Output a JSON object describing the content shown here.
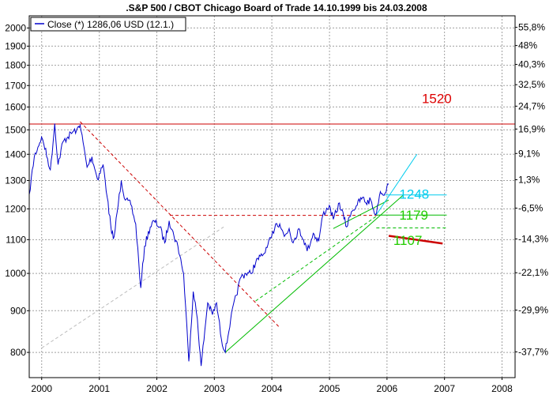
{
  "chart_data": {
    "type": "line",
    "title": ".S&P 500 / CBOT Chicago Board of Trade 14.10.1999 bis 24.03.2008",
    "legend": {
      "label": "Close (*) 1286,06 USD (12.1.)",
      "placement": "top-left",
      "color": "#0000cc"
    },
    "x_range": [
      "1999-10-14",
      "2008-03-24"
    ],
    "x_ticks": [
      "2000",
      "2001",
      "2002",
      "2003",
      "2004",
      "2005",
      "2006",
      "2007",
      "2008"
    ],
    "y_range": [
      745,
      2070
    ],
    "y_scale": "log",
    "y_ticks_left": [
      2000,
      1900,
      1800,
      1700,
      1600,
      1500,
      1400,
      1300,
      1200,
      1100,
      1000,
      900,
      800
    ],
    "y_ticks_right": [
      {
        "label": "55,8%",
        "pct": 55.8
      },
      {
        "label": "48%",
        "pct": 48.0
      },
      {
        "label": "40,3%",
        "pct": 40.3
      },
      {
        "label": "32,5%",
        "pct": 32.5
      },
      {
        "label": "24,7%",
        "pct": 24.7
      },
      {
        "label": "16,9%",
        "pct": 16.9
      },
      {
        "label": "9,1%",
        "pct": 9.1
      },
      {
        "label": "1,3%",
        "pct": 1.3
      },
      {
        "label": "-6,5%",
        "pct": -6.5
      },
      {
        "label": "-14,3%",
        "pct": -14.3
      },
      {
        "label": "-22,1%",
        "pct": -22.1
      },
      {
        "label": "-29,9%",
        "pct": -29.9
      },
      {
        "label": "-37,7%",
        "pct": -37.7
      }
    ],
    "grid": true,
    "colors": {
      "series": "#0000cc",
      "red": "#cc0000",
      "green": "#00bb00",
      "cyan": "#00ccee",
      "annotation_red": "#dd0000",
      "annotation_green": "#22cc00",
      "annotation_cyan": "#00ccee"
    },
    "series": [
      {
        "name": "Close (*) 1286,06 USD (12.1.)",
        "points": [
          [
            "1999-10-14",
            1250
          ],
          [
            "1999-11-15",
            1390
          ],
          [
            "1999-12-31",
            1470
          ],
          [
            "2000-01-15",
            1440
          ],
          [
            "2000-02-25",
            1340
          ],
          [
            "2000-03-24",
            1527
          ],
          [
            "2000-04-14",
            1360
          ],
          [
            "2000-05-15",
            1450
          ],
          [
            "2000-06-15",
            1470
          ],
          [
            "2000-07-15",
            1490
          ],
          [
            "2000-08-10",
            1500
          ],
          [
            "2000-09-01",
            1520
          ],
          [
            "2000-10-15",
            1350
          ],
          [
            "2000-11-15",
            1390
          ],
          [
            "2000-12-20",
            1305
          ],
          [
            "2001-01-25",
            1360
          ],
          [
            "2001-02-20",
            1240
          ],
          [
            "2001-03-20",
            1120
          ],
          [
            "2001-04-05",
            1110
          ],
          [
            "2001-05-20",
            1300
          ],
          [
            "2001-06-15",
            1230
          ],
          [
            "2001-07-20",
            1215
          ],
          [
            "2001-08-20",
            1150
          ],
          [
            "2001-09-21",
            960
          ],
          [
            "2001-10-15",
            1080
          ],
          [
            "2001-11-20",
            1140
          ],
          [
            "2001-12-15",
            1160
          ],
          [
            "2002-01-20",
            1140
          ],
          [
            "2002-02-20",
            1090
          ],
          [
            "2002-03-20",
            1160
          ],
          [
            "2002-04-20",
            1110
          ],
          [
            "2002-05-15",
            1080
          ],
          [
            "2002-06-20",
            1000
          ],
          [
            "2002-07-23",
            780
          ],
          [
            "2002-08-20",
            950
          ],
          [
            "2002-09-15",
            880
          ],
          [
            "2002-10-09",
            770
          ],
          [
            "2002-11-20",
            920
          ],
          [
            "2002-12-20",
            890
          ],
          [
            "2003-01-15",
            920
          ],
          [
            "2003-02-15",
            830
          ],
          [
            "2003-03-11",
            800
          ],
          [
            "2003-04-15",
            880
          ],
          [
            "2003-05-20",
            940
          ],
          [
            "2003-06-20",
            990
          ],
          [
            "2003-07-20",
            1000
          ],
          [
            "2003-08-20",
            1000
          ],
          [
            "2003-09-20",
            1030
          ],
          [
            "2003-10-20",
            1050
          ],
          [
            "2003-11-20",
            1060
          ],
          [
            "2003-12-31",
            1110
          ],
          [
            "2004-01-25",
            1150
          ],
          [
            "2004-02-20",
            1150
          ],
          [
            "2004-03-20",
            1110
          ],
          [
            "2004-04-20",
            1135
          ],
          [
            "2004-05-15",
            1090
          ],
          [
            "2004-06-20",
            1135
          ],
          [
            "2004-07-20",
            1100
          ],
          [
            "2004-08-12",
            1065
          ],
          [
            "2004-09-20",
            1120
          ],
          [
            "2004-10-25",
            1095
          ],
          [
            "2004-11-20",
            1180
          ],
          [
            "2004-12-31",
            1212
          ],
          [
            "2005-01-25",
            1165
          ],
          [
            "2005-03-05",
            1220
          ],
          [
            "2005-04-20",
            1140
          ],
          [
            "2005-05-20",
            1190
          ],
          [
            "2005-06-20",
            1210
          ],
          [
            "2005-07-30",
            1240
          ],
          [
            "2005-08-20",
            1220
          ],
          [
            "2005-09-20",
            1230
          ],
          [
            "2005-10-20",
            1180
          ],
          [
            "2005-11-20",
            1260
          ],
          [
            "2005-12-20",
            1255
          ],
          [
            "2006-01-12",
            1286
          ]
        ]
      }
    ],
    "trend_lines": [
      {
        "name": "resistance-1520",
        "color": "#cc0000",
        "style": "solid",
        "from": [
          "1999-10-14",
          1525
        ],
        "to": [
          "2008-03-24",
          1525
        ]
      },
      {
        "name": "downtrend",
        "color": "#cc0000",
        "style": "dashed",
        "from": [
          "2000-09-01",
          1535
        ],
        "to": [
          "2004-02-15",
          860
        ]
      },
      {
        "name": "support-1179",
        "color": "#cc0000",
        "style": "dashed",
        "from": [
          "2002-03-25",
          1178
        ],
        "to": [
          "2005-11-01",
          1178
        ]
      },
      {
        "name": "gray-diagonal",
        "color": "#bbbbbb",
        "style": "dashed",
        "from": [
          "2000-01-01",
          810
        ],
        "to": [
          "2003-03-01",
          1140
        ]
      },
      {
        "name": "uptrend-main",
        "color": "#00bb00",
        "style": "solid",
        "from": [
          "2003-03-11",
          800
        ],
        "to": [
          "2006-04-15",
          1248
        ]
      },
      {
        "name": "uptrend-dashed",
        "color": "#00bb00",
        "style": "dashed",
        "from": [
          "2003-09-20",
          925
        ],
        "to": [
          "2005-10-25",
          1175
        ]
      },
      {
        "name": "uptrend-upper",
        "color": "#00bb00",
        "style": "solid",
        "from": [
          "2005-01-25",
          1135
        ],
        "to": [
          "2006-01-12",
          1230
        ]
      },
      {
        "name": "level-1248",
        "color": "#00ccee",
        "style": "solid",
        "from": [
          "2005-12-20",
          1248
        ],
        "to": [
          "2007-01-15",
          1248
        ]
      },
      {
        "name": "channel-cyan",
        "color": "#00ccee",
        "style": "solid",
        "from": [
          "2005-10-25",
          1180
        ],
        "to": [
          "2006-07-10",
          1400
        ]
      },
      {
        "name": "level-1179",
        "color": "#00bb00",
        "style": "solid",
        "from": [
          "2005-10-25",
          1179
        ],
        "to": [
          "2007-01-15",
          1179
        ]
      },
      {
        "name": "level-1137",
        "color": "#00bb00",
        "style": "dashed",
        "from": [
          "2005-10-25",
          1137
        ],
        "to": [
          "2007-01-15",
          1137
        ]
      },
      {
        "name": "projection-red",
        "color": "#cc0000",
        "style": "solid",
        "from": [
          "2006-01-12",
          1112
        ],
        "to": [
          "2006-12-20",
          1088
        ]
      }
    ],
    "annotations": [
      {
        "text": "1520",
        "color": "#dd0000",
        "x": "2006-08-10",
        "y": 1640
      },
      {
        "text": "1248",
        "color": "#00ccee",
        "x": "2006-03-20",
        "y": 1252
      },
      {
        "text": "1179",
        "color": "#22cc00",
        "x": "2006-03-20",
        "y": 1180
      },
      {
        "text": "1107",
        "color": "#22cc00",
        "x": "2006-02-10",
        "y": 1098
      }
    ]
  }
}
